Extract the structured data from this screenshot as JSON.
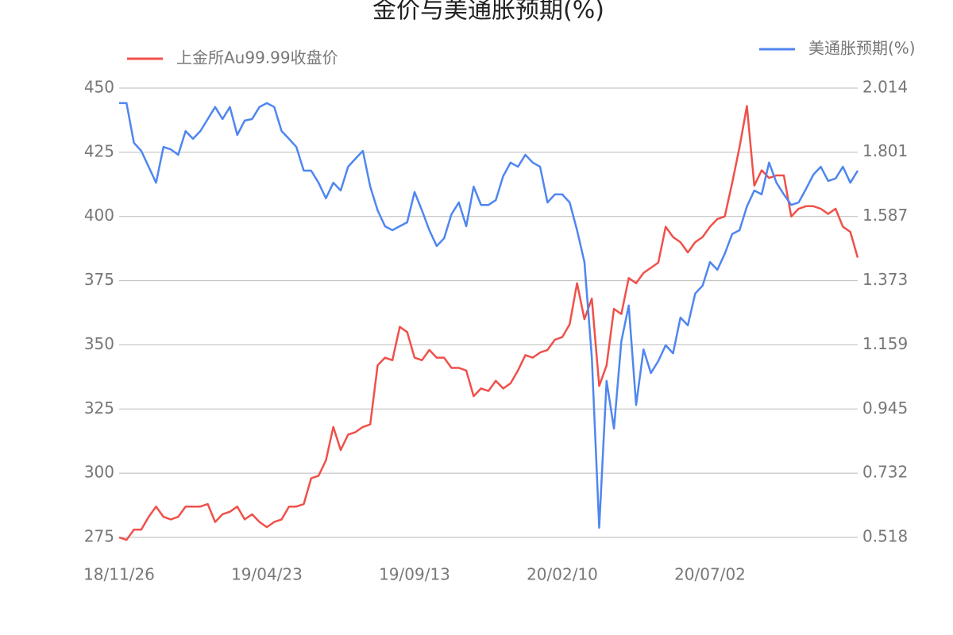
{
  "chart_data": {
    "type": "line",
    "title": "金价与美通胀预期(%)",
    "categories": [
      "18/11/26",
      null,
      null,
      null,
      null,
      null,
      null,
      null,
      null,
      null,
      null,
      null,
      null,
      null,
      null,
      null,
      null,
      null,
      null,
      null,
      "19/04/23",
      null,
      null,
      null,
      null,
      null,
      null,
      null,
      null,
      null,
      null,
      null,
      null,
      null,
      null,
      null,
      null,
      null,
      null,
      null,
      "19/09/13",
      null,
      null,
      null,
      null,
      null,
      null,
      null,
      null,
      null,
      null,
      null,
      null,
      null,
      null,
      null,
      null,
      null,
      null,
      null,
      "20/02/10",
      null,
      null,
      null,
      null,
      null,
      null,
      null,
      null,
      null,
      null,
      null,
      null,
      null,
      null,
      null,
      null,
      null,
      null,
      null,
      "20/07/02",
      null,
      null,
      null,
      null,
      null,
      null,
      null,
      null,
      null,
      null,
      null,
      null,
      null,
      null,
      null,
      null,
      null,
      null,
      null,
      null
    ],
    "series": [
      {
        "name": "上金所Au99.99收盘价",
        "color": "#f0504a",
        "axis": "y",
        "values": [
          275,
          274,
          278,
          278,
          283,
          287,
          283,
          282,
          283,
          287,
          287,
          287,
          288,
          281,
          284,
          285,
          287,
          282,
          284,
          281,
          279,
          281,
          282,
          287,
          287,
          288,
          298,
          299,
          305,
          318,
          309,
          315,
          316,
          318,
          319,
          342,
          345,
          344,
          357,
          355,
          345,
          344,
          348,
          345,
          345,
          341,
          341,
          340,
          330,
          333,
          332,
          336,
          333,
          335,
          340,
          346,
          345,
          347,
          348,
          352,
          353,
          358,
          374,
          360,
          368,
          334,
          342,
          364,
          362,
          376,
          374,
          378,
          380,
          382,
          396,
          392,
          390,
          386,
          390,
          392,
          396,
          399,
          400,
          413,
          427,
          443,
          412,
          418,
          415,
          416,
          416,
          400,
          403,
          404,
          404,
          403,
          401,
          403,
          396,
          394,
          384
        ]
      },
      {
        "name": "美通胀预期(%)",
        "color": "#4f86f0",
        "axis": "y2",
        "values": [
          1.964,
          1.964,
          1.832,
          1.805,
          1.752,
          1.699,
          1.818,
          1.81,
          1.792,
          1.871,
          1.845,
          1.871,
          1.911,
          1.951,
          1.911,
          1.951,
          1.858,
          1.906,
          1.911,
          1.951,
          1.964,
          1.951,
          1.871,
          1.845,
          1.818,
          1.739,
          1.739,
          1.699,
          1.647,
          1.699,
          1.673,
          1.752,
          1.779,
          1.805,
          1.686,
          1.607,
          1.554,
          1.541,
          1.554,
          1.567,
          1.668,
          1.607,
          1.541,
          1.488,
          1.514,
          1.594,
          1.633,
          1.554,
          1.686,
          1.625,
          1.625,
          1.641,
          1.721,
          1.766,
          1.752,
          1.792,
          1.766,
          1.752,
          1.633,
          1.66,
          1.66,
          1.633,
          1.541,
          1.435,
          1.118,
          0.55,
          1.039,
          0.88,
          1.171,
          1.29,
          0.959,
          1.144,
          1.065,
          1.105,
          1.158,
          1.131,
          1.25,
          1.224,
          1.33,
          1.356,
          1.435,
          1.409,
          1.462,
          1.528,
          1.541,
          1.62,
          1.673,
          1.66,
          1.766,
          1.699,
          1.66,
          1.625,
          1.633,
          1.678,
          1.726,
          1.752,
          1.705,
          1.713,
          1.752,
          1.699,
          1.739
        ]
      }
    ],
    "ylim": [
      275,
      450
    ],
    "yticks": [
      275,
      300,
      325,
      350,
      375,
      400,
      425,
      450
    ],
    "y2lim": [
      0.518,
      2.014
    ],
    "y2ticks": [
      0.518,
      0.732,
      0.945,
      1.159,
      1.373,
      1.587,
      1.801,
      2.014
    ],
    "grid": true
  }
}
